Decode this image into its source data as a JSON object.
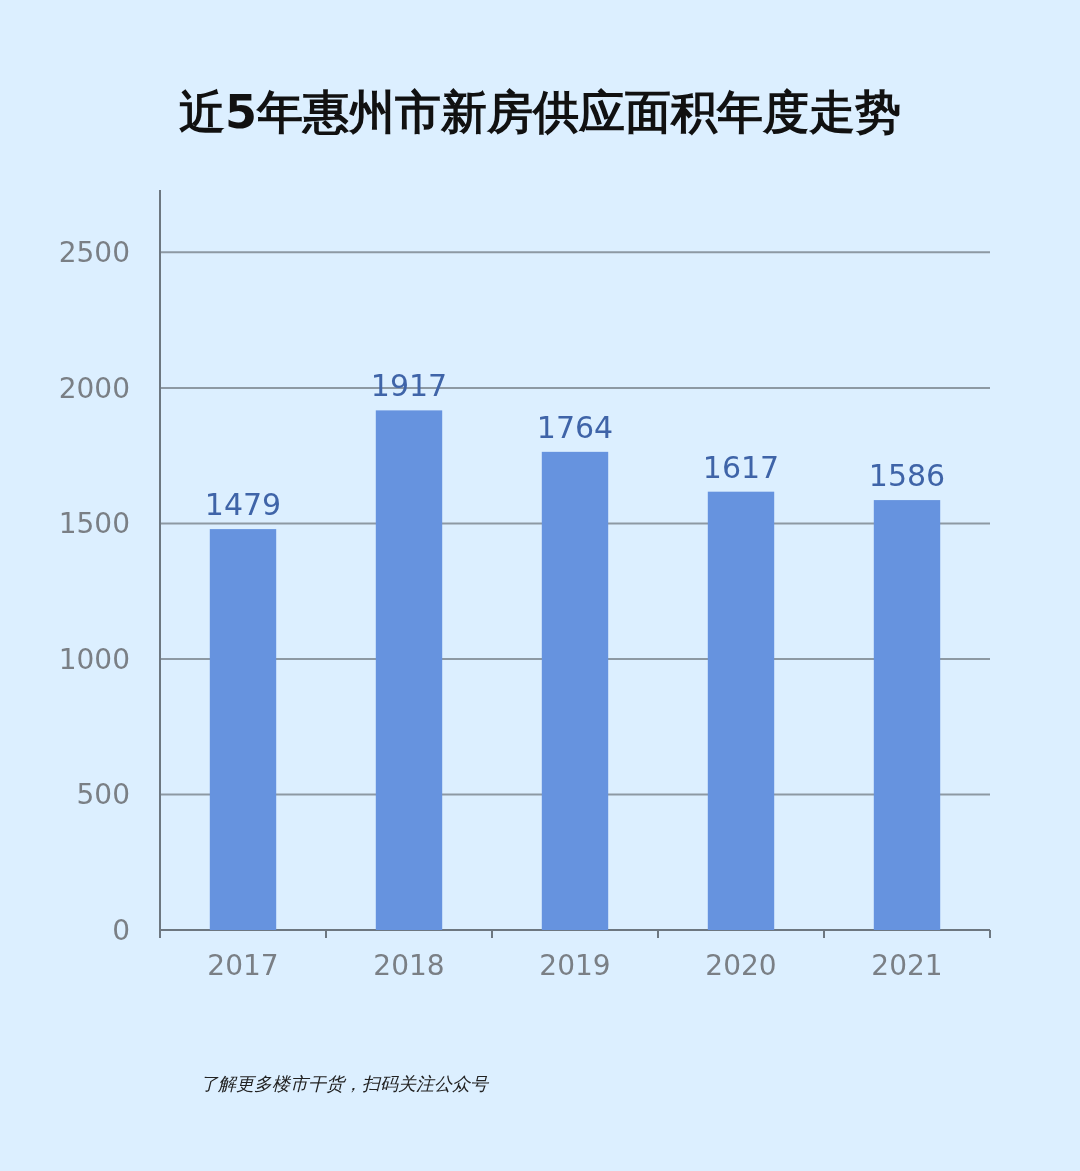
{
  "chart_data": {
    "type": "bar",
    "title": "近5年惠州市新房供应面积年度走势",
    "categories": [
      "2017",
      "2018",
      "2019",
      "2020",
      "2021"
    ],
    "values": [
      1479,
      1917,
      1764,
      1617,
      1586
    ],
    "color": "#6693df",
    "ylim": [
      0,
      2730
    ],
    "yticks": [
      0,
      500,
      1000,
      1500,
      2000,
      2500
    ],
    "grid": "y",
    "data_labels": true,
    "annotations": [
      "了解更多楼市干货，扫码关注公众号"
    ]
  }
}
